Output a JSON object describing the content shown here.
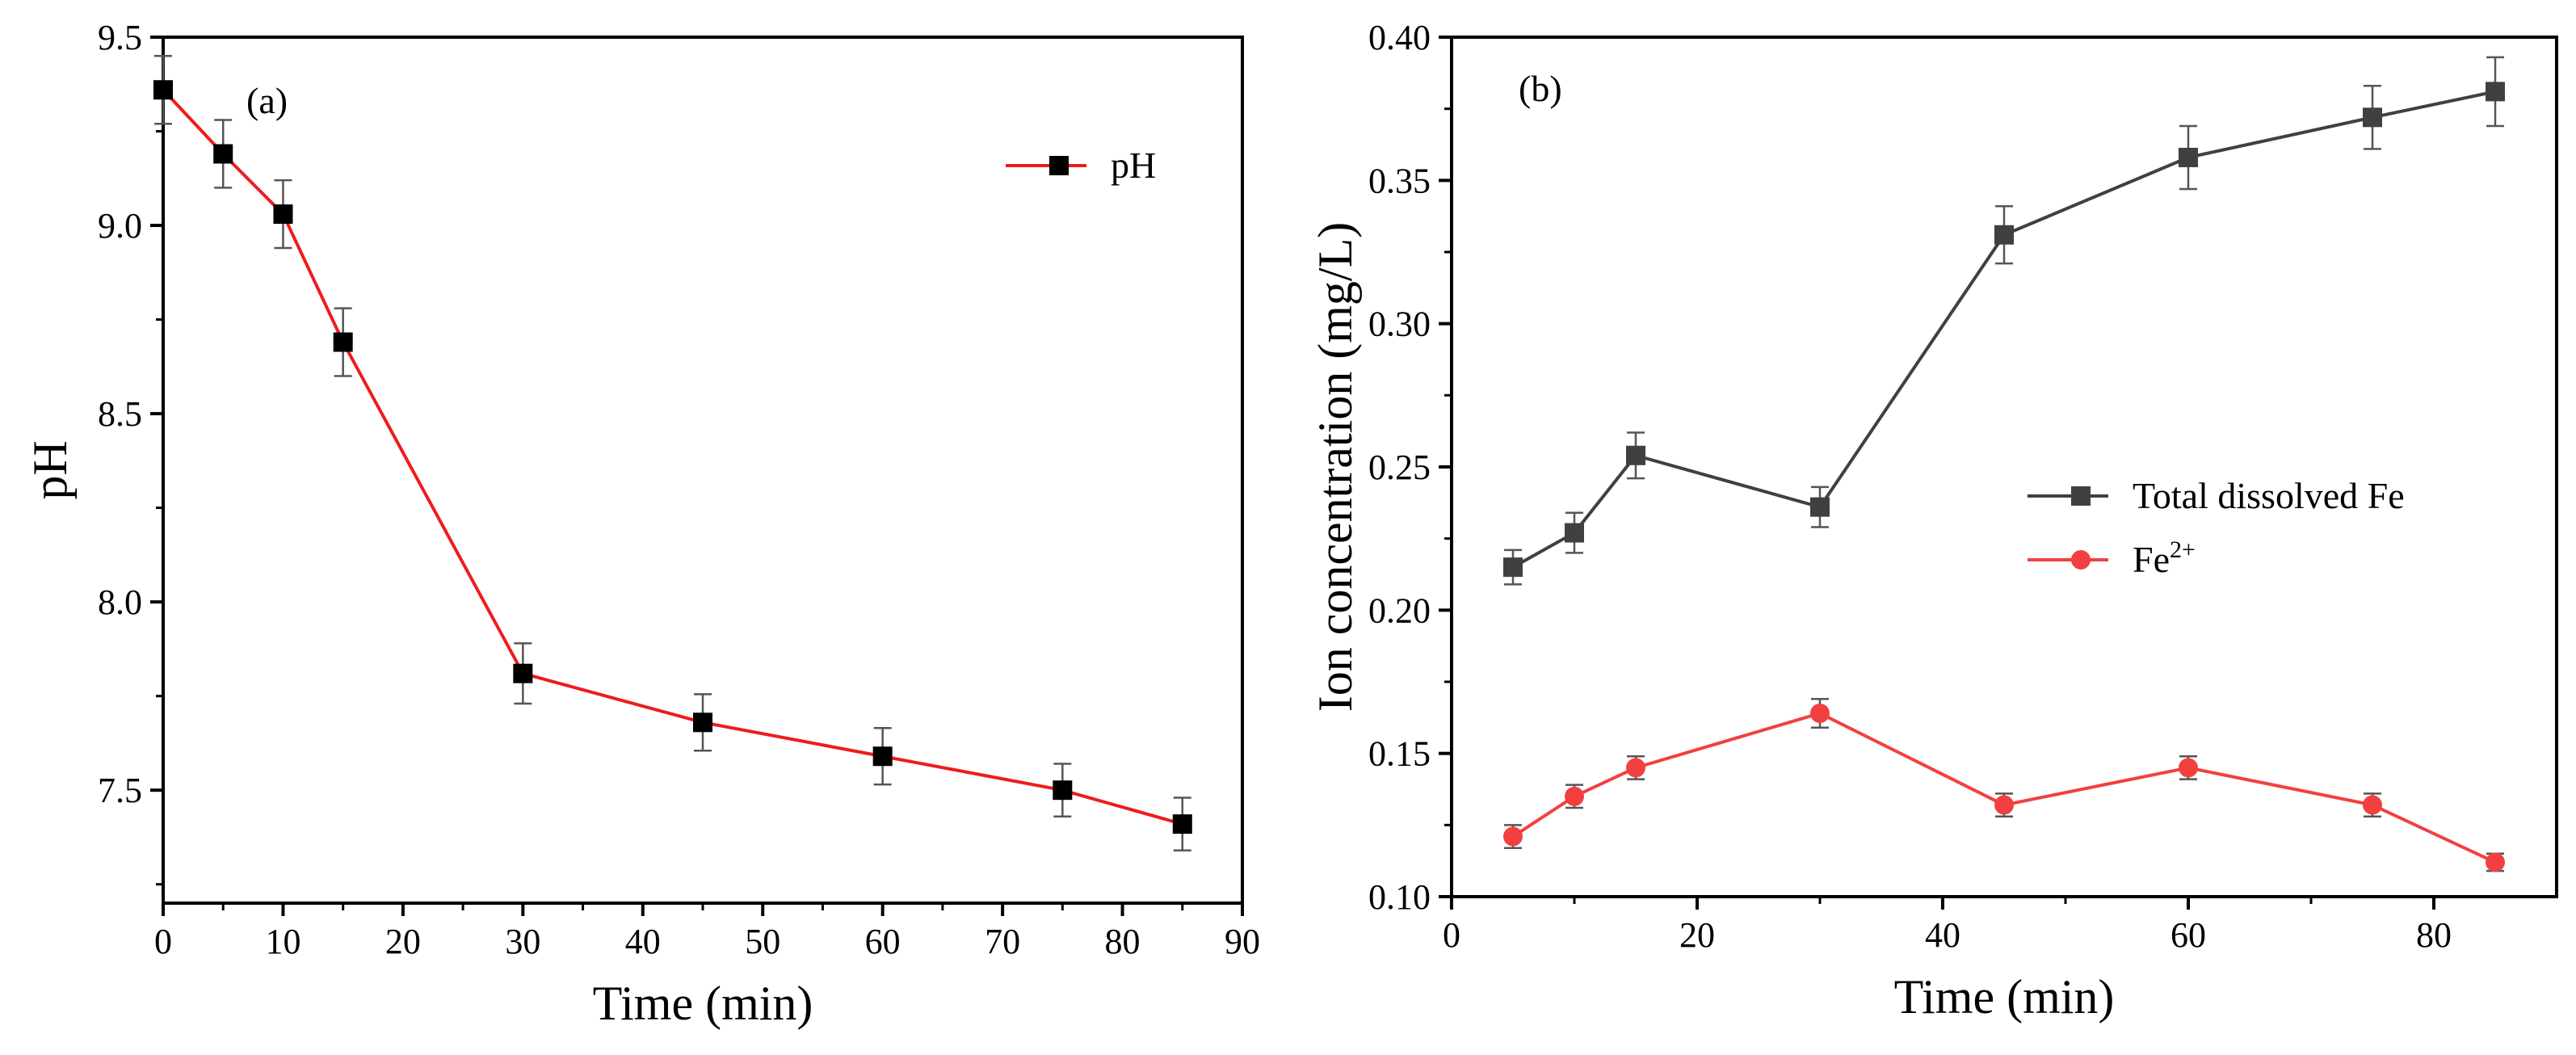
{
  "figure": {
    "panels": [
      "(a)",
      "(b)"
    ]
  },
  "colors": {
    "red": "#ee1c1c",
    "black": "#000000",
    "gray": "#404040",
    "fe2_red": "#f24040"
  },
  "chart_data": [
    {
      "type": "line",
      "panel_label": "(a)",
      "title": "",
      "xlabel": "Time (min)",
      "ylabel": "pH",
      "xlim": [
        0,
        90
      ],
      "ylim": [
        7.2,
        9.5
      ],
      "x_ticks": [
        0,
        10,
        20,
        30,
        40,
        50,
        60,
        70,
        80,
        90
      ],
      "y_ticks": [
        7.5,
        8.0,
        8.5,
        9.0,
        9.5
      ],
      "y_tick_labels": [
        "7.5",
        "8.0",
        "8.5",
        "9.0",
        "9.5"
      ],
      "grid": false,
      "legend": "top-right",
      "series": [
        {
          "name": "pH",
          "marker": "square",
          "x": [
            0,
            5,
            10,
            15,
            30,
            45,
            60,
            75,
            85
          ],
          "values": [
            9.36,
            9.19,
            9.03,
            8.69,
            7.81,
            7.68,
            7.59,
            7.5,
            7.41
          ],
          "error": [
            0.09,
            0.09,
            0.09,
            0.09,
            0.08,
            0.075,
            0.075,
            0.07,
            0.07
          ]
        }
      ]
    },
    {
      "type": "line",
      "panel_label": "(b)",
      "title": "",
      "xlabel": "Time (min)",
      "ylabel": "Ion concentration (mg/L)",
      "xlim": [
        0,
        90
      ],
      "ylim": [
        0.1,
        0.4
      ],
      "x_ticks": [
        0,
        20,
        40,
        60,
        80
      ],
      "y_ticks": [
        0.1,
        0.15,
        0.2,
        0.25,
        0.3,
        0.35,
        0.4
      ],
      "y_tick_labels": [
        "0.10",
        "0.15",
        "0.20",
        "0.25",
        "0.30",
        "0.35",
        "0.40"
      ],
      "grid": false,
      "legend": "middle-right",
      "series": [
        {
          "name": "Total dissolved Fe",
          "marker": "square",
          "x": [
            5,
            10,
            15,
            30,
            45,
            60,
            75,
            85
          ],
          "values": [
            0.215,
            0.227,
            0.254,
            0.236,
            0.331,
            0.358,
            0.372,
            0.381
          ],
          "error": [
            0.006,
            0.007,
            0.008,
            0.007,
            0.01,
            0.011,
            0.011,
            0.012
          ]
        },
        {
          "name": "Fe2+",
          "legend_base": "Fe",
          "legend_sup": "2+",
          "marker": "circle",
          "x": [
            5,
            10,
            15,
            30,
            45,
            60,
            75,
            85
          ],
          "values": [
            0.121,
            0.135,
            0.145,
            0.164,
            0.132,
            0.145,
            0.132,
            0.112
          ],
          "error": [
            0.004,
            0.004,
            0.004,
            0.005,
            0.004,
            0.004,
            0.004,
            0.003
          ]
        }
      ]
    }
  ]
}
